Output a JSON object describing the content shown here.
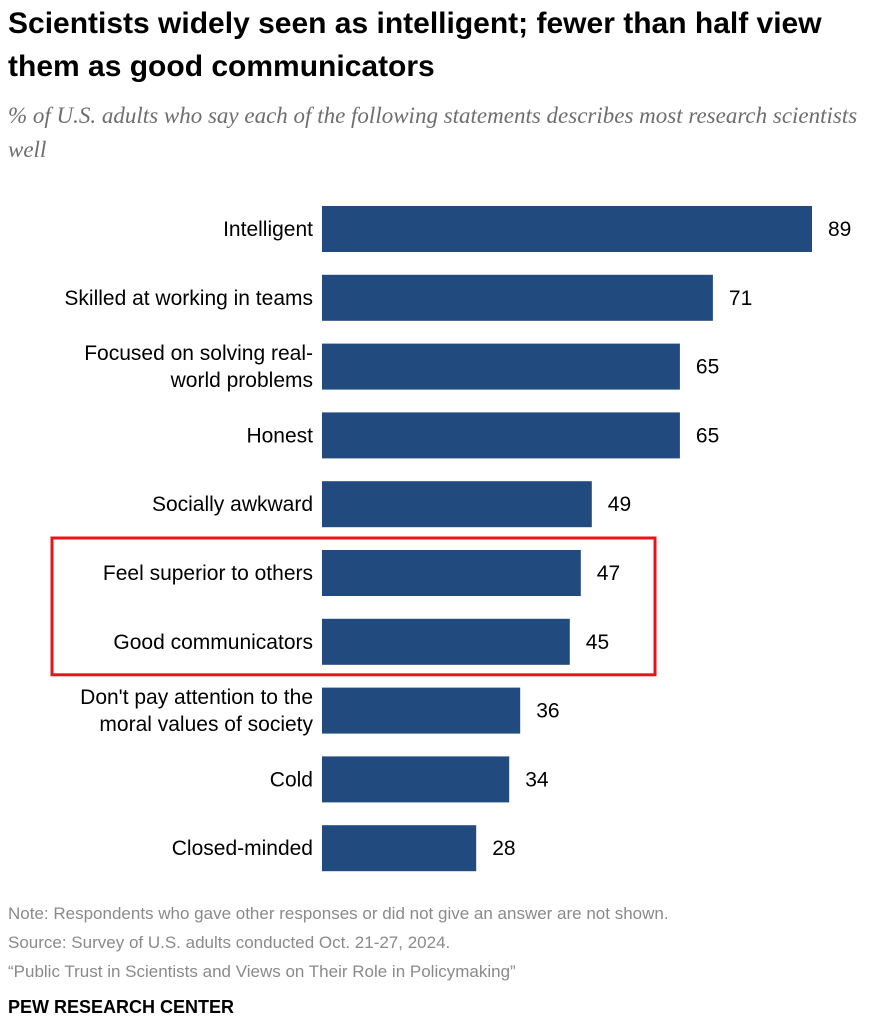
{
  "header": {
    "title": "Scientists widely seen as intelligent; fewer than half view them as good communicators",
    "subtitle": "% of U.S. adults who say each of the following statements describes most research scientists well"
  },
  "chart_data": {
    "type": "bar",
    "orientation": "horizontal",
    "categories": [
      [
        "Intelligent"
      ],
      [
        "Skilled at working in teams"
      ],
      [
        "Focused on solving real-",
        "world problems"
      ],
      [
        "Honest"
      ],
      [
        "Socially awkward"
      ],
      [
        "Feel superior to others"
      ],
      [
        "Good communicators"
      ],
      [
        "Don't pay attention to the",
        "moral values of society"
      ],
      [
        "Cold"
      ],
      [
        "Closed-minded"
      ]
    ],
    "values": [
      89,
      71,
      65,
      65,
      49,
      47,
      45,
      36,
      34,
      28
    ],
    "xlim": [
      0,
      100
    ],
    "grid": false,
    "legend": "none",
    "highlighted_categories": [
      "Feel superior to others",
      "Good communicators"
    ]
  },
  "colors": {
    "bar": "#214b7e",
    "highlight_box": "#e8141a",
    "label_text": "#000000",
    "note_text": "#8a8a8a"
  },
  "footer": {
    "note": "Note: Respondents who gave other responses or did not give an answer are not shown.",
    "source": "Source: Survey of U.S. adults conducted Oct. 21-27, 2024.",
    "report": "“Public Trust in Scientists and Views on Their Role in Policymaking”",
    "brand": "PEW RESEARCH CENTER"
  }
}
